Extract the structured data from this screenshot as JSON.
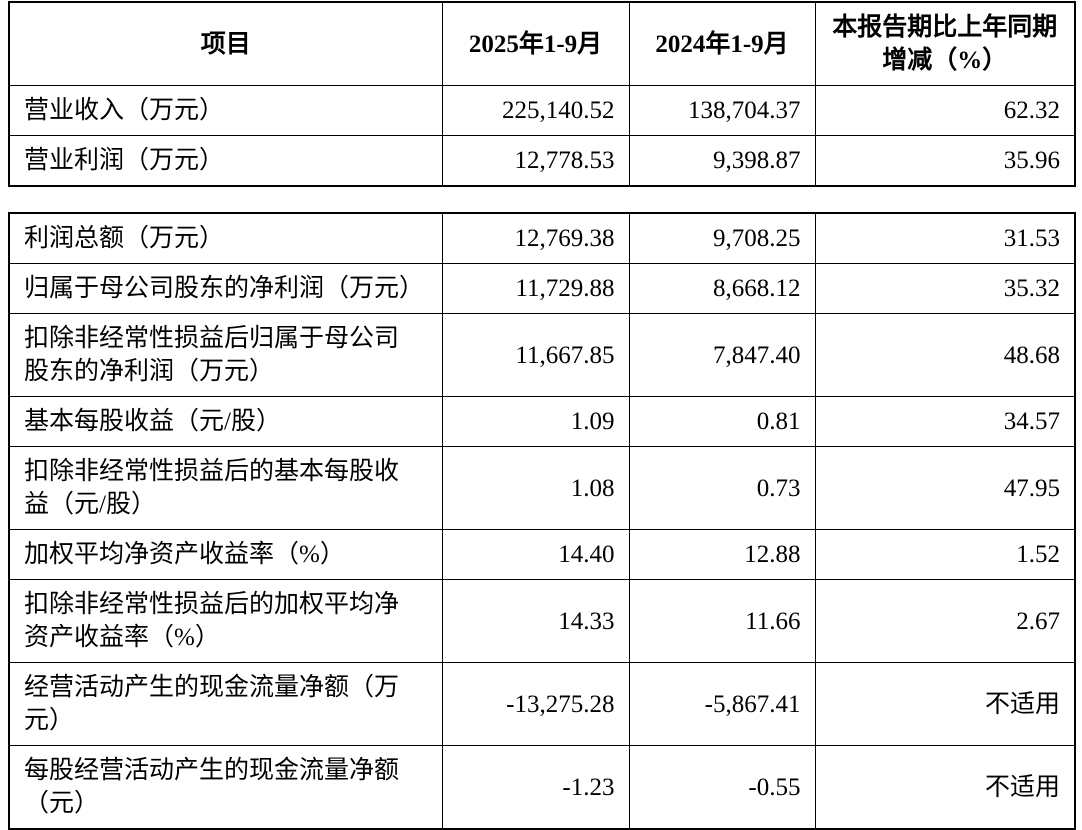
{
  "table1": {
    "header": [
      "项目",
      "2025年1-9月",
      "2024年1-9月",
      "本报告期比上年同期增减（%）"
    ],
    "rows": [
      [
        "营业收入（万元）",
        "225,140.52",
        "138,704.37",
        "62.32"
      ],
      [
        "营业利润（万元）",
        "12,778.53",
        "9,398.87",
        "35.96"
      ]
    ]
  },
  "table2": {
    "rows": [
      [
        "利润总额（万元）",
        "12,769.38",
        "9,708.25",
        "31.53"
      ],
      [
        "归属于母公司股东的净利润（万元）",
        "11,729.88",
        "8,668.12",
        "35.32"
      ],
      [
        "扣除非经常性损益后归属于母公司股东的净利润（万元）",
        "11,667.85",
        "7,847.40",
        "48.68"
      ],
      [
        "基本每股收益（元/股）",
        "1.09",
        "0.81",
        "34.57"
      ],
      [
        "扣除非经常性损益后的基本每股收益（元/股）",
        "1.08",
        "0.73",
        "47.95"
      ],
      [
        "加权平均净资产收益率（%）",
        "14.40",
        "12.88",
        "1.52"
      ],
      [
        "扣除非经常性损益后的加权平均净资产收益率（%）",
        "14.33",
        "11.66",
        "2.67"
      ],
      [
        "经营活动产生的现金流量净额（万元）",
        "-13,275.28",
        "-5,867.41",
        "不适用"
      ],
      [
        "每股经营活动产生的现金流量净额（元）",
        "-1.23",
        "-0.55",
        "不适用"
      ]
    ]
  }
}
